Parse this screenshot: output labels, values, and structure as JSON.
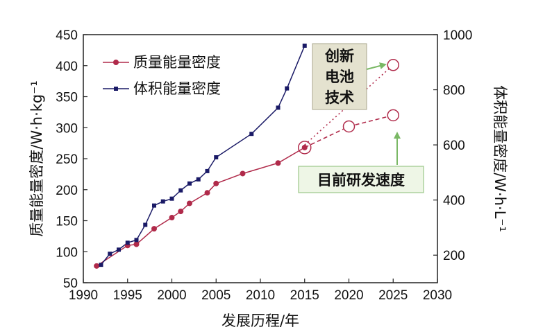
{
  "chart_data": {
    "type": "line",
    "title": "",
    "xlabel": "发展历程/年",
    "ylabel_left": "质量能量密度/W·h·kg⁻¹",
    "ylabel_right": "体积能量密度/W·h·L⁻¹",
    "xlim": [
      1990,
      2030
    ],
    "ylim_left": [
      50,
      450
    ],
    "ylim_right": [
      100,
      1000
    ],
    "x_ticks": [
      "1990",
      "1995",
      "2000",
      "2005",
      "2010",
      "2015",
      "2020",
      "2025",
      "2030"
    ],
    "y_left_ticks": [
      "50",
      "100",
      "150",
      "200",
      "250",
      "300",
      "350",
      "400",
      "450"
    ],
    "y_right_ticks": [
      "200",
      "400",
      "600",
      "800",
      "1000"
    ],
    "legend_position": "top-left",
    "series": [
      {
        "name": "质量能量密度",
        "axis": "left",
        "color": "#b02a4a",
        "marker": "circle",
        "x": [
          1991.5,
          1995,
          1996,
          1998,
          2000,
          2001,
          2002,
          2004,
          2005,
          2008,
          2012,
          2015
        ],
        "y": [
          77,
          110,
          112,
          137,
          155,
          165,
          178,
          195,
          210,
          226,
          243,
          268
        ]
      },
      {
        "name": "体积能量密度",
        "axis": "right",
        "color": "#1a1a66",
        "marker": "square",
        "x": [
          1992,
          1993,
          1994,
          1995,
          1996,
          1997,
          1998,
          1999,
          2000,
          2001,
          2002,
          2003,
          2004,
          2005,
          2009,
          2012,
          2013,
          2015
        ],
        "y": [
          165,
          205,
          220,
          245,
          255,
          310,
          380,
          395,
          405,
          435,
          460,
          475,
          505,
          555,
          640,
          735,
          805,
          960
        ]
      }
    ],
    "projections": [
      {
        "axis": "left",
        "color": "#b02a4a",
        "x": [
          2015,
          2020,
          2025
        ],
        "y": [
          268,
          302,
          320
        ]
      },
      {
        "axis": "right",
        "color": "#b02a4a",
        "x": [
          2015,
          2025
        ],
        "y": [
          600,
          890
        ]
      }
    ],
    "annotations": [
      {
        "text": "创新电池技术",
        "lines": [
          "创新",
          "电池",
          "技术"
        ]
      },
      {
        "text": "目前研发速度"
      }
    ]
  }
}
